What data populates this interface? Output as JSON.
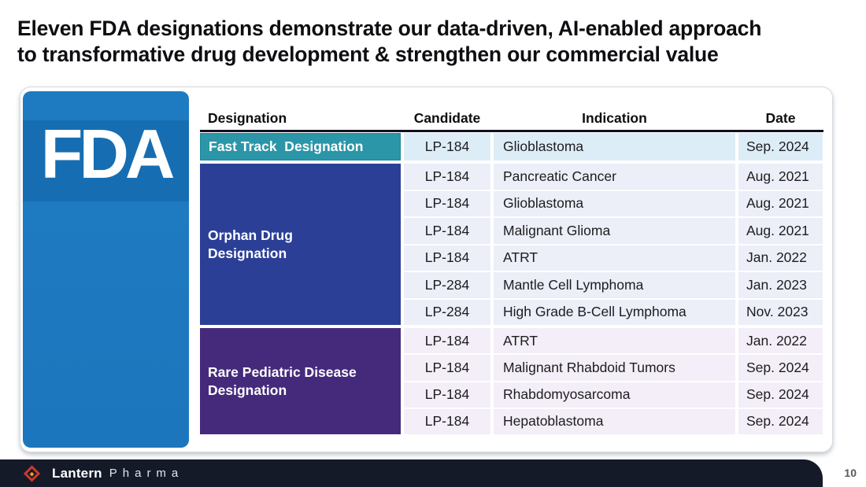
{
  "title": "Eleven FDA designations demonstrate our data-driven, AI-enabled approach\nto transformative drug development & strengthen our commercial value",
  "fda_logo": {
    "text": "FDA"
  },
  "table": {
    "headers": [
      "Designation",
      "Candidate",
      "Indication",
      "Date"
    ],
    "sections": [
      {
        "label": "Fast Track  Designation",
        "rows": [
          {
            "candidate": "LP-184",
            "indication": "Glioblastoma",
            "date": "Sep. 2024"
          }
        ]
      },
      {
        "label": "Orphan Drug\nDesignation",
        "rows": [
          {
            "candidate": "LP-184",
            "indication": "Pancreatic Cancer",
            "date": "Aug. 2021"
          },
          {
            "candidate": "LP-184",
            "indication": "Glioblastoma",
            "date": "Aug. 2021"
          },
          {
            "candidate": "LP-184",
            "indication": "Malignant Glioma",
            "date": "Aug. 2021"
          },
          {
            "candidate": "LP-184",
            "indication": "ATRT",
            "date": "Jan. 2022"
          },
          {
            "candidate": "LP-284",
            "indication": "Mantle Cell Lymphoma",
            "date": "Jan. 2023"
          },
          {
            "candidate": "LP-284",
            "indication": "High Grade B-Cell Lymphoma",
            "date": "Nov. 2023"
          }
        ]
      },
      {
        "label": "Rare Pediatric Disease\nDesignation",
        "rows": [
          {
            "candidate": "LP-184",
            "indication": "ATRT",
            "date": "Jan. 2022"
          },
          {
            "candidate": "LP-184",
            "indication": "Malignant Rhabdoid Tumors",
            "date": "Sep. 2024"
          },
          {
            "candidate": "LP-184",
            "indication": "Rhabdomyosarcoma",
            "date": "Sep. 2024"
          },
          {
            "candidate": "LP-184",
            "indication": "Hepatoblastoma",
            "date": "Sep. 2024"
          }
        ]
      }
    ]
  },
  "footer": {
    "brand_primary": "Lantern",
    "brand_secondary": "Pharma",
    "page_number": "10"
  },
  "colors": {
    "fda_blue": "#1c76bd",
    "fast_track_teal": "#2b96a8",
    "orphan_blue": "#2c3f97",
    "rare_pediatric_purple": "#452a7c",
    "fast_track_row_bg": "#ddedf7",
    "orphan_row_bg": "#eceef8",
    "rare_pediatric_row_bg": "#f3eef7",
    "footer_bg": "#151a29",
    "diamond_red": "#cb392b",
    "diamond_orange": "#f3a11d"
  }
}
